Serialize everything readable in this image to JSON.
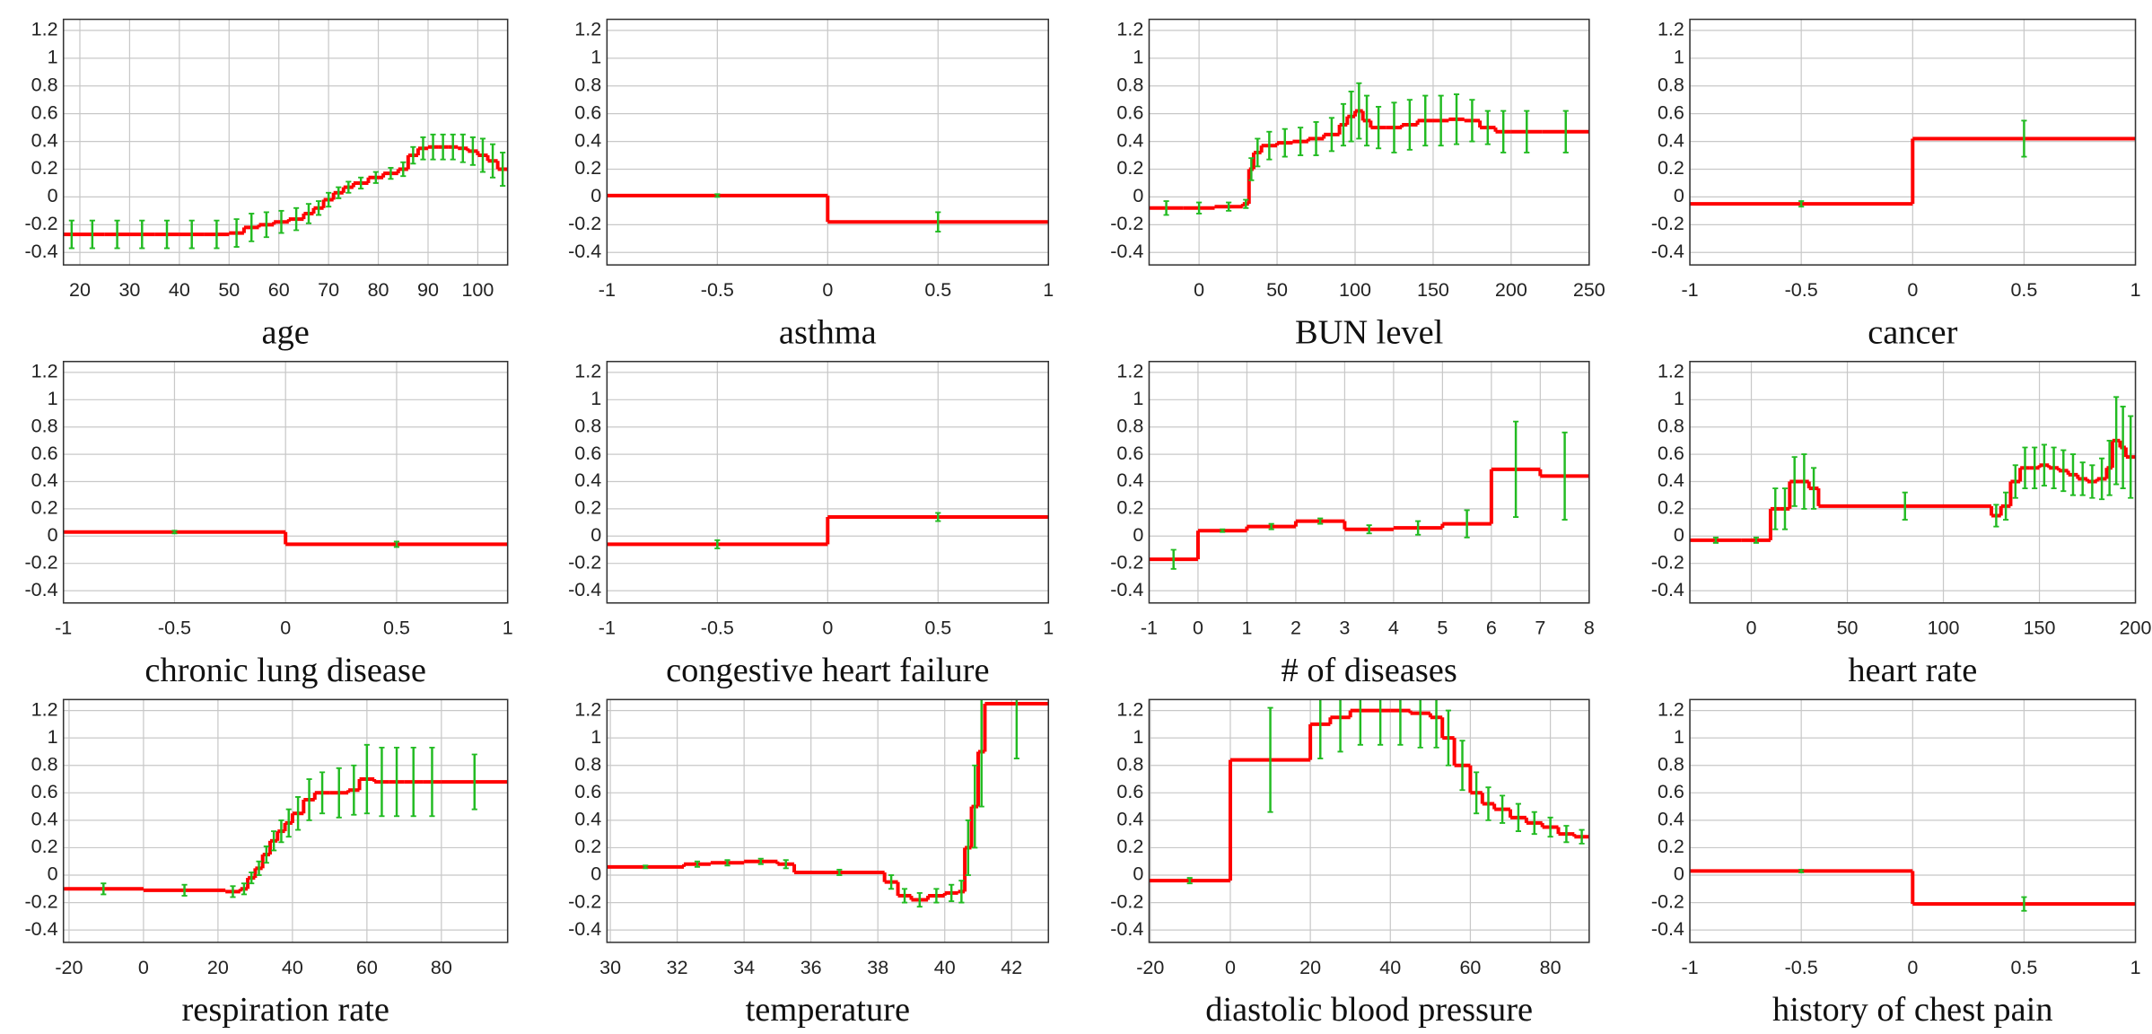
{
  "chart_data": [
    {
      "type": "step",
      "xlabel": "age",
      "xlim": [
        16.7,
        106
      ],
      "xticks": [
        20,
        30,
        40,
        50,
        60,
        70,
        80,
        90,
        100
      ],
      "ylim": [
        -0.49,
        1.28
      ],
      "yticks": [
        -0.4,
        -0.2,
        0,
        0.2,
        0.4,
        0.6,
        0.8,
        1,
        1.2
      ],
      "grid": true,
      "color": "#ff0000",
      "error_color": "#22bb22",
      "x": [
        16.7,
        20,
        25,
        30,
        35,
        40,
        45,
        50,
        53,
        56,
        59,
        62,
        65,
        67,
        69,
        71,
        73,
        75,
        78,
        81,
        84,
        86,
        88,
        90,
        92,
        94,
        96,
        98,
        100,
        102,
        104
      ],
      "values": [
        -0.27,
        -0.27,
        -0.27,
        -0.27,
        -0.27,
        -0.27,
        -0.27,
        -0.26,
        -0.22,
        -0.2,
        -0.18,
        -0.16,
        -0.12,
        -0.08,
        -0.02,
        0.03,
        0.07,
        0.1,
        0.14,
        0.17,
        0.2,
        0.3,
        0.35,
        0.36,
        0.36,
        0.36,
        0.35,
        0.33,
        0.3,
        0.26,
        0.2
      ],
      "errors": [
        0.1,
        0.1,
        0.1,
        0.1,
        0.1,
        0.1,
        0.1,
        0.1,
        0.1,
        0.09,
        0.08,
        0.08,
        0.07,
        0.05,
        0.05,
        0.04,
        0.04,
        0.04,
        0.04,
        0.04,
        0.05,
        0.06,
        0.08,
        0.09,
        0.09,
        0.09,
        0.1,
        0.1,
        0.12,
        0.12,
        0.12
      ]
    },
    {
      "type": "step",
      "xlabel": "asthma",
      "xlim": [
        -1,
        1
      ],
      "xticks": [
        -1,
        -0.5,
        0,
        0.5,
        1
      ],
      "ylim": [
        -0.49,
        1.28
      ],
      "yticks": [
        -0.4,
        -0.2,
        0,
        0.2,
        0.4,
        0.6,
        0.8,
        1,
        1.2
      ],
      "grid": true,
      "color": "#ff0000",
      "error_color": "#22bb22",
      "x": [
        -1,
        0
      ],
      "values": [
        0.01,
        -0.18
      ],
      "errors": [
        0.01,
        0.07
      ]
    },
    {
      "type": "step",
      "xlabel": "BUN level",
      "xlim": [
        -32,
        250
      ],
      "xticks": [
        0,
        50,
        100,
        150,
        200,
        250
      ],
      "ylim": [
        -0.49,
        1.28
      ],
      "yticks": [
        -0.4,
        -0.2,
        0,
        0.2,
        0.4,
        0.6,
        0.8,
        1,
        1.2
      ],
      "grid": true,
      "color": "#ff0000",
      "error_color": "#22bb22",
      "x": [
        -32,
        -10,
        10,
        28,
        32,
        35,
        40,
        50,
        60,
        70,
        80,
        90,
        95,
        100,
        105,
        110,
        120,
        130,
        140,
        150,
        160,
        170,
        180,
        190,
        200,
        220
      ],
      "values": [
        -0.08,
        -0.08,
        -0.07,
        -0.05,
        0.2,
        0.32,
        0.37,
        0.39,
        0.4,
        0.42,
        0.45,
        0.52,
        0.58,
        0.62,
        0.55,
        0.5,
        0.5,
        0.52,
        0.55,
        0.55,
        0.56,
        0.55,
        0.5,
        0.47,
        0.47,
        0.47
      ],
      "errors": [
        0.05,
        0.04,
        0.03,
        0.03,
        0.08,
        0.1,
        0.1,
        0.1,
        0.1,
        0.12,
        0.12,
        0.15,
        0.18,
        0.2,
        0.18,
        0.15,
        0.18,
        0.18,
        0.18,
        0.18,
        0.18,
        0.15,
        0.12,
        0.15,
        0.15,
        0.15
      ]
    },
    {
      "type": "step",
      "xlabel": "cancer",
      "xlim": [
        -1,
        1
      ],
      "xticks": [
        -1,
        -0.5,
        0,
        0.5,
        1
      ],
      "ylim": [
        -0.49,
        1.28
      ],
      "yticks": [
        -0.4,
        -0.2,
        0,
        0.2,
        0.4,
        0.6,
        0.8,
        1,
        1.2
      ],
      "grid": true,
      "color": "#ff0000",
      "error_color": "#22bb22",
      "x": [
        -1,
        0
      ],
      "values": [
        -0.05,
        0.42
      ],
      "errors": [
        0.02,
        0.13
      ]
    },
    {
      "type": "step",
      "xlabel": "chronic lung disease",
      "xlim": [
        -1,
        1
      ],
      "xticks": [
        -1,
        -0.5,
        0,
        0.5,
        1
      ],
      "ylim": [
        -0.49,
        1.28
      ],
      "yticks": [
        -0.4,
        -0.2,
        0,
        0.2,
        0.4,
        0.6,
        0.8,
        1,
        1.2
      ],
      "grid": true,
      "color": "#ff0000",
      "error_color": "#22bb22",
      "x": [
        -1,
        0
      ],
      "values": [
        0.03,
        -0.06
      ],
      "errors": [
        0.01,
        0.02
      ]
    },
    {
      "type": "step",
      "xlabel": "congestive heart failure",
      "xlim": [
        -1,
        1
      ],
      "xticks": [
        -1,
        -0.5,
        0,
        0.5,
        1
      ],
      "ylim": [
        -0.49,
        1.28
      ],
      "yticks": [
        -0.4,
        -0.2,
        0,
        0.2,
        0.4,
        0.6,
        0.8,
        1,
        1.2
      ],
      "grid": true,
      "color": "#ff0000",
      "error_color": "#22bb22",
      "x": [
        -1,
        0
      ],
      "values": [
        -0.06,
        0.14
      ],
      "errors": [
        0.03,
        0.03
      ]
    },
    {
      "type": "step",
      "xlabel": "# of diseases",
      "xlim": [
        -1,
        8
      ],
      "xticks": [
        -1,
        0,
        1,
        2,
        3,
        4,
        5,
        6,
        7,
        8
      ],
      "ylim": [
        -0.49,
        1.28
      ],
      "yticks": [
        -0.4,
        -0.2,
        0,
        0.2,
        0.4,
        0.6,
        0.8,
        1,
        1.2
      ],
      "grid": true,
      "color": "#ff0000",
      "error_color": "#22bb22",
      "x": [
        -1,
        0,
        1,
        2,
        3,
        4,
        5,
        6,
        7
      ],
      "values": [
        -0.17,
        0.04,
        0.07,
        0.11,
        0.05,
        0.06,
        0.09,
        0.49,
        0.44
      ],
      "errors": [
        0.07,
        0.01,
        0.02,
        0.02,
        0.03,
        0.05,
        0.1,
        0.35,
        0.32
      ]
    },
    {
      "type": "step",
      "xlabel": "heart rate",
      "xlim": [
        -32,
        200
      ],
      "xticks": [
        0,
        50,
        100,
        150,
        200
      ],
      "ylim": [
        -0.49,
        1.28
      ],
      "yticks": [
        -0.4,
        -0.2,
        0,
        0.2,
        0.4,
        0.6,
        0.8,
        1,
        1.2
      ],
      "grid": true,
      "color": "#ff0000",
      "error_color": "#22bb22",
      "x": [
        -32,
        -5,
        10,
        15,
        20,
        25,
        30,
        35,
        125,
        130,
        135,
        140,
        145,
        150,
        155,
        160,
        165,
        170,
        175,
        180,
        185,
        188,
        192,
        195
      ],
      "values": [
        -0.03,
        -0.03,
        0.2,
        0.2,
        0.4,
        0.4,
        0.35,
        0.22,
        0.15,
        0.22,
        0.4,
        0.5,
        0.5,
        0.52,
        0.5,
        0.48,
        0.45,
        0.42,
        0.4,
        0.42,
        0.5,
        0.7,
        0.65,
        0.58
      ],
      "errors": [
        0.02,
        0.02,
        0.15,
        0.15,
        0.18,
        0.2,
        0.15,
        0.1,
        0.08,
        0.1,
        0.12,
        0.15,
        0.15,
        0.15,
        0.15,
        0.15,
        0.15,
        0.12,
        0.12,
        0.15,
        0.2,
        0.32,
        0.3,
        0.3
      ]
    },
    {
      "type": "step",
      "xlabel": "respiration rate",
      "xlim": [
        -21.5,
        97.8
      ],
      "xticks": [
        -20,
        0,
        20,
        40,
        60,
        80
      ],
      "ylim": [
        -0.49,
        1.28
      ],
      "yticks": [
        -0.4,
        -0.2,
        0,
        0.2,
        0.4,
        0.6,
        0.8,
        1,
        1.2
      ],
      "grid": true,
      "color": "#ff0000",
      "error_color": "#22bb22",
      "x": [
        -21.5,
        0,
        22,
        26,
        28,
        30,
        32,
        34,
        36,
        38,
        40,
        43,
        46,
        50,
        55,
        58,
        62,
        66,
        70,
        75,
        80
      ],
      "values": [
        -0.1,
        -0.11,
        -0.12,
        -0.1,
        -0.02,
        0.05,
        0.15,
        0.25,
        0.32,
        0.38,
        0.45,
        0.55,
        0.6,
        0.6,
        0.62,
        0.7,
        0.68,
        0.68,
        0.68,
        0.68,
        0.68
      ],
      "errors": [
        0.04,
        0.04,
        0.04,
        0.04,
        0.04,
        0.05,
        0.06,
        0.07,
        0.08,
        0.1,
        0.12,
        0.15,
        0.15,
        0.18,
        0.18,
        0.25,
        0.25,
        0.25,
        0.25,
        0.25,
        0.2
      ]
    },
    {
      "type": "step",
      "xlabel": "temperature",
      "xlim": [
        29.9,
        43.1
      ],
      "xticks": [
        30,
        32,
        34,
        36,
        38,
        40,
        42
      ],
      "ylim": [
        -0.49,
        1.28
      ],
      "yticks": [
        -0.4,
        -0.2,
        0,
        0.2,
        0.4,
        0.6,
        0.8,
        1,
        1.2
      ],
      "grid": true,
      "color": "#ff0000",
      "error_color": "#22bb22",
      "x": [
        29.9,
        32.2,
        33,
        34,
        35,
        35.5,
        38.2,
        38.6,
        39,
        39.5,
        40,
        40.4,
        40.6,
        40.8,
        41,
        41.2
      ],
      "values": [
        0.06,
        0.08,
        0.09,
        0.1,
        0.08,
        0.02,
        -0.05,
        -0.15,
        -0.18,
        -0.15,
        -0.13,
        -0.12,
        0.2,
        0.5,
        0.9,
        1.25
      ],
      "errors": [
        0.01,
        0.02,
        0.02,
        0.02,
        0.03,
        0.02,
        0.05,
        0.05,
        0.05,
        0.05,
        0.06,
        0.08,
        0.2,
        0.3,
        0.4,
        0.4
      ]
    },
    {
      "type": "step",
      "xlabel": "diastolic blood pressure",
      "xlim": [
        -20.3,
        89.7
      ],
      "xticks": [
        -20,
        0,
        20,
        40,
        60,
        80
      ],
      "ylim": [
        -0.49,
        1.28
      ],
      "yticks": [
        -0.4,
        -0.2,
        0,
        0.2,
        0.4,
        0.6,
        0.8,
        1,
        1.2
      ],
      "grid": true,
      "color": "#ff0000",
      "error_color": "#22bb22",
      "x": [
        -20.3,
        0,
        20,
        25,
        30,
        35,
        40,
        45,
        50,
        53,
        56,
        60,
        63,
        66,
        70,
        74,
        78,
        82,
        86
      ],
      "values": [
        -0.04,
        0.84,
        1.1,
        1.15,
        1.2,
        1.2,
        1.2,
        1.18,
        1.15,
        1.0,
        0.8,
        0.6,
        0.52,
        0.48,
        0.42,
        0.38,
        0.35,
        0.3,
        0.28
      ],
      "errors": [
        0.02,
        0.38,
        0.25,
        0.25,
        0.25,
        0.25,
        0.25,
        0.25,
        0.22,
        0.2,
        0.18,
        0.15,
        0.12,
        0.1,
        0.1,
        0.08,
        0.07,
        0.06,
        0.05
      ]
    },
    {
      "type": "step",
      "xlabel": "history of chest pain",
      "xlim": [
        -1,
        1
      ],
      "xticks": [
        -1,
        -0.5,
        0,
        0.5,
        1
      ],
      "ylim": [
        -0.49,
        1.28
      ],
      "yticks": [
        -0.4,
        -0.2,
        0,
        0.2,
        0.4,
        0.6,
        0.8,
        1,
        1.2
      ],
      "grid": true,
      "color": "#ff0000",
      "error_color": "#22bb22",
      "x": [
        -1,
        0
      ],
      "values": [
        0.03,
        -0.21
      ],
      "errors": [
        0.01,
        0.05
      ]
    }
  ]
}
